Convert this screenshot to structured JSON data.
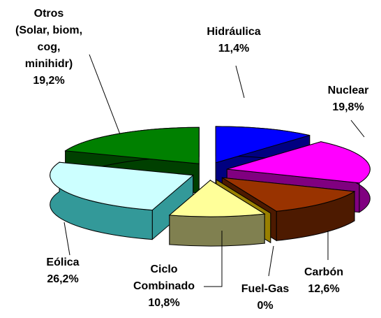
{
  "chart_data": {
    "type": "pie3d",
    "categories": [
      "Hidráulica",
      "Nuclear",
      "Carbón",
      "Fuel-Gas",
      "Ciclo Combinado",
      "Eólica",
      "Otros (Solar, biom, cog, minihidr)"
    ],
    "values": [
      11.4,
      19.8,
      12.6,
      0,
      10.8,
      26.2,
      19.2
    ],
    "value_labels": [
      "11,4%",
      "19,8%",
      "12,6%",
      "0%",
      "10,8%",
      "26,2%",
      "19,2%"
    ],
    "colors": [
      "#0000ff",
      "#ff00ff",
      "#993300",
      "#cccc00",
      "#ffff99",
      "#ccffff",
      "#008000"
    ],
    "side_colors": [
      "#000080",
      "#800080",
      "#4d1a00",
      "#998000",
      "#808050",
      "#339999",
      "#004000"
    ]
  }
}
